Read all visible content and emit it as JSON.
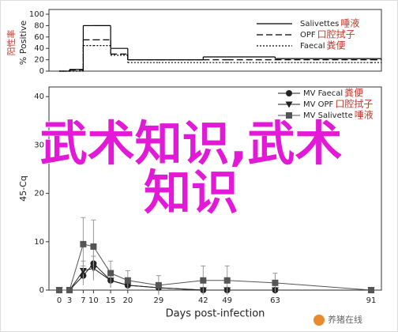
{
  "chart_data": [
    {
      "type": "step",
      "ylabel": "% Positive",
      "ylabel_translation": "阳性率",
      "xlim": [
        -3,
        94
      ],
      "ylim": [
        0,
        100
      ],
      "yticks": [
        0,
        20,
        40,
        60,
        80,
        100
      ],
      "x": [
        0,
        3,
        7,
        10,
        15,
        20,
        29,
        42,
        49,
        63,
        91
      ],
      "series": [
        {
          "name": "Salivettes",
          "translation": "唾液",
          "color": "#000000",
          "dash": "none",
          "values": [
            0,
            3,
            80,
            80,
            40,
            20,
            20,
            25,
            25,
            22,
            22
          ]
        },
        {
          "name": "OPF",
          "translation": "口腔拭子",
          "color": "#000000",
          "dash": "8,4",
          "values": [
            0,
            2,
            55,
            55,
            30,
            20,
            20,
            20,
            20,
            20,
            20
          ]
        },
        {
          "name": "Faecal",
          "translation": "粪便",
          "color": "#000000",
          "dash": "2,2",
          "values": [
            0,
            0,
            45,
            45,
            28,
            15,
            15,
            15,
            15,
            15,
            15
          ]
        }
      ]
    },
    {
      "type": "line",
      "xlabel": "Days post-infection",
      "ylabel": "45-Cq",
      "xlim": [
        -3,
        94
      ],
      "ylim": [
        0,
        42
      ],
      "xticks": [
        0,
        3,
        7,
        10,
        15,
        20,
        29,
        42,
        49,
        63,
        91
      ],
      "yticks": [
        0,
        10,
        20,
        30,
        40
      ],
      "x": [
        0,
        3,
        7,
        10,
        15,
        20,
        29,
        42,
        49,
        63,
        91
      ],
      "series": [
        {
          "name": "MV Faecal",
          "translation": "粪便",
          "color": "#222222",
          "marker": "circle",
          "values": [
            0,
            0,
            3,
            5.5,
            2,
            1,
            0.5,
            0,
            0,
            0,
            0
          ],
          "errors": [
            0,
            0,
            2,
            3,
            1.5,
            1,
            0.5,
            0,
            0,
            0,
            0
          ]
        },
        {
          "name": "MV OPF",
          "translation": "口腔拭子",
          "color": "#222222",
          "marker": "triangle",
          "values": [
            0,
            0,
            4,
            4.5,
            2,
            1,
            0.5,
            0,
            0,
            0,
            0
          ],
          "errors": [
            0,
            0,
            2,
            2.5,
            1.5,
            1,
            0.5,
            0,
            0,
            0,
            0
          ]
        },
        {
          "name": "MV Salivette",
          "translation": "唾液",
          "color": "#555555",
          "marker": "square",
          "values": [
            0,
            0,
            9.5,
            9,
            3.5,
            2,
            1,
            2,
            2,
            1.5,
            0
          ],
          "errors": [
            0,
            0,
            5.5,
            5.5,
            2.5,
            2,
            2,
            3,
            3,
            2,
            0
          ]
        }
      ]
    }
  ],
  "overlay_lines": [
    "武术知识,武术",
    "知识"
  ],
  "watermark": "养猪在线"
}
